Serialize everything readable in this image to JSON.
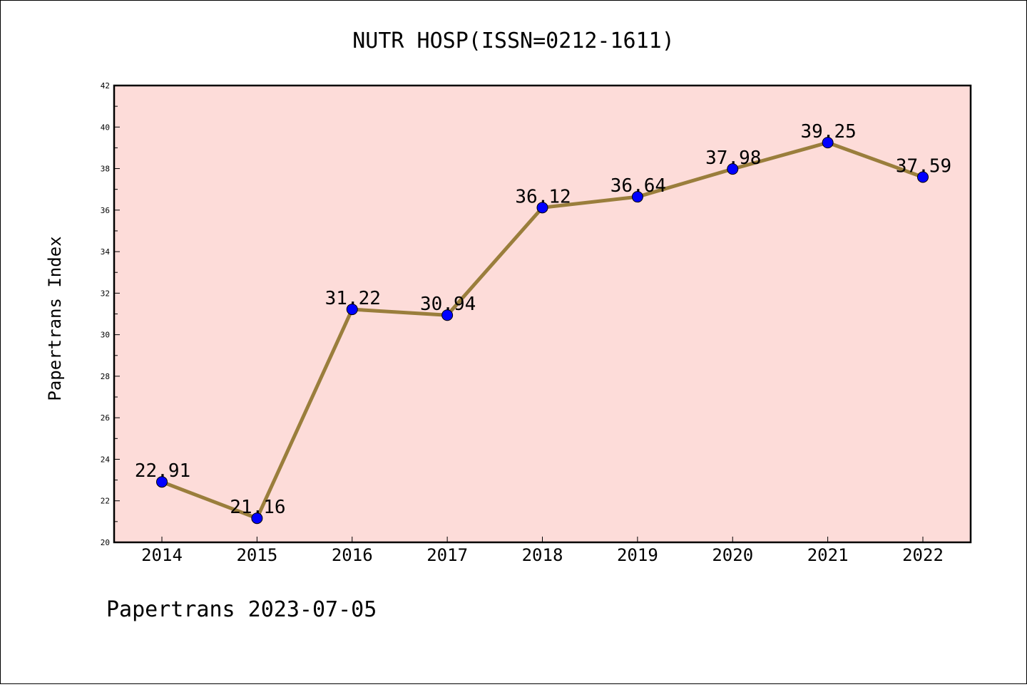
{
  "chart_data": {
    "type": "line",
    "title": "NUTR HOSP(ISSN=0212-1611)",
    "xlabel": "",
    "ylabel": "Papertrans Index",
    "categories": [
      "2014",
      "2015",
      "2016",
      "2017",
      "2018",
      "2019",
      "2020",
      "2021",
      "2022"
    ],
    "series": [
      {
        "values": [
          22.91,
          21.16,
          31.22,
          30.94,
          36.12,
          36.64,
          37.98,
          39.25,
          37.59
        ]
      }
    ],
    "data_labels": [
      "22.91",
      "21.16",
      "31.22",
      "30.94",
      "36.12",
      "36.64",
      "37.98",
      "39.25",
      "37.59"
    ],
    "ylim": [
      20,
      42
    ],
    "yticks": [
      "20",
      "22",
      "24",
      "26",
      "28",
      "30",
      "32",
      "34",
      "36",
      "38",
      "40",
      "42"
    ],
    "grid": false,
    "legend": "none",
    "colors": {
      "plot_background": "#fddcd9",
      "line": "#9a7e3c",
      "marker": "#0000ff"
    },
    "footer": "Papertrans 2023-07-05"
  }
}
